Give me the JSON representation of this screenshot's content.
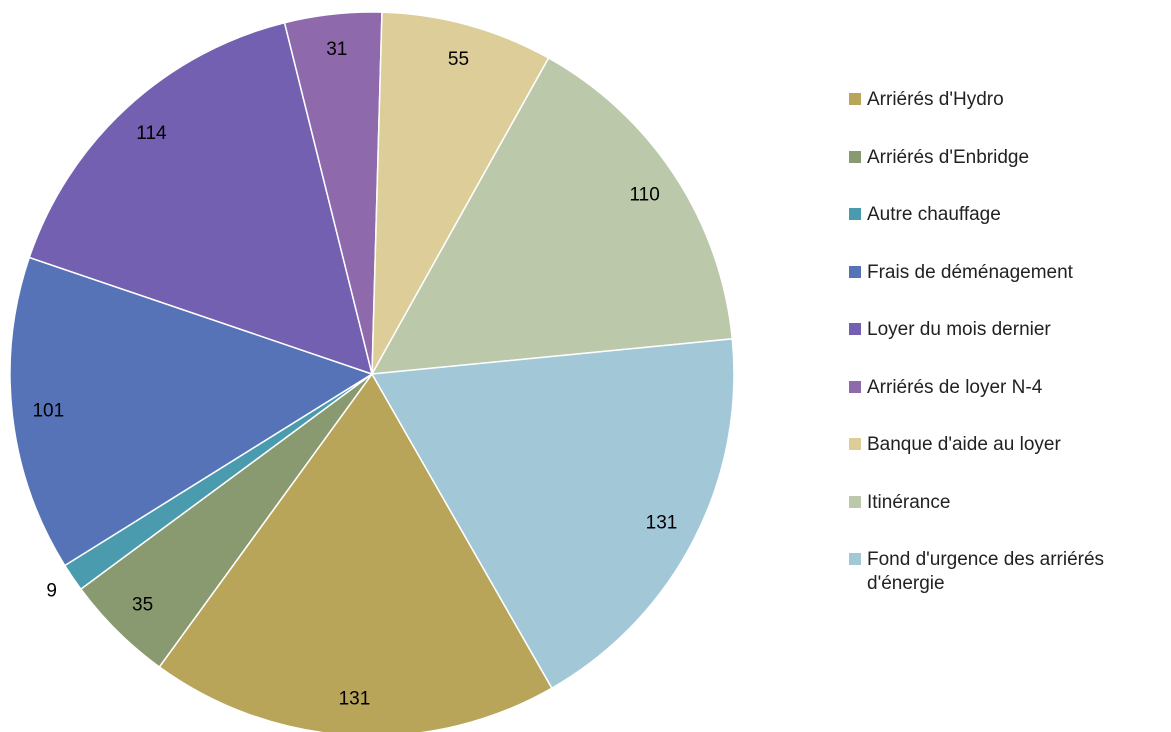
{
  "chart_data": {
    "type": "pie",
    "categories": [
      "Arriérés d'Hydro",
      "Arriérés d'Enbridge",
      "Autre chauffage",
      "Frais de déménagement",
      "Loyer du mois dernier",
      "Arriérés de loyer N-4",
      "Banque d'aide au loyer",
      "Itinérance",
      "Fond d'urgence des arriérés d'énergie"
    ],
    "values": [
      131,
      35,
      9,
      101,
      114,
      31,
      55,
      110,
      131
    ],
    "colors": [
      "#b8a55a",
      "#8a9a70",
      "#4a9bad",
      "#5673b8",
      "#7360b0",
      "#8e6aac",
      "#dccd99",
      "#bcc8aa",
      "#a2c8d8"
    ],
    "legend": "right"
  }
}
